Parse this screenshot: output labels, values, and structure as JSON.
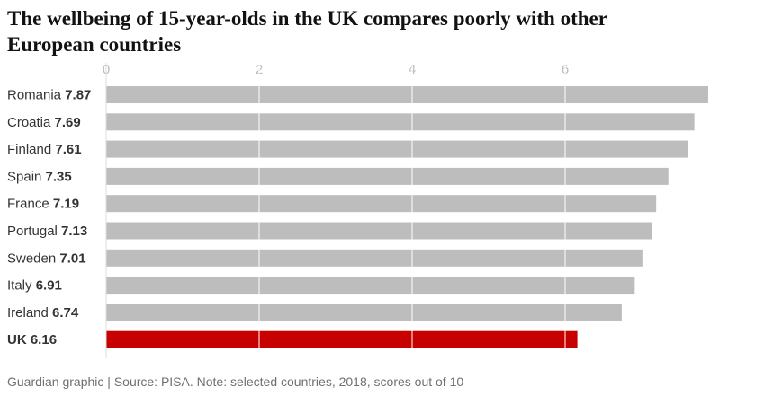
{
  "chart_data": {
    "type": "bar",
    "orientation": "horizontal",
    "title": "The wellbeing of 15-year-olds in the UK compares poorly with other European countries",
    "categories": [
      "Romania",
      "Croatia",
      "Finland",
      "Spain",
      "France",
      "Portugal",
      "Sweden",
      "Italy",
      "Ireland",
      "UK"
    ],
    "values": [
      7.87,
      7.69,
      7.61,
      7.35,
      7.19,
      7.13,
      7.01,
      6.91,
      6.74,
      6.16
    ],
    "color": "#bdbdbd",
    "colors": [
      "#bdbdbd",
      "#bdbdbd",
      "#bdbdbd",
      "#bdbdbd",
      "#bdbdbd",
      "#bdbdbd",
      "#bdbdbd",
      "#bdbdbd",
      "#bdbdbd",
      "#c70000"
    ],
    "xlim": [
      0,
      8
    ],
    "xticks": [
      0,
      2,
      4,
      6
    ],
    "grid": true,
    "source": "Guardian graphic | Source: PISA. Note: selected countries, 2018, scores out of 10"
  }
}
